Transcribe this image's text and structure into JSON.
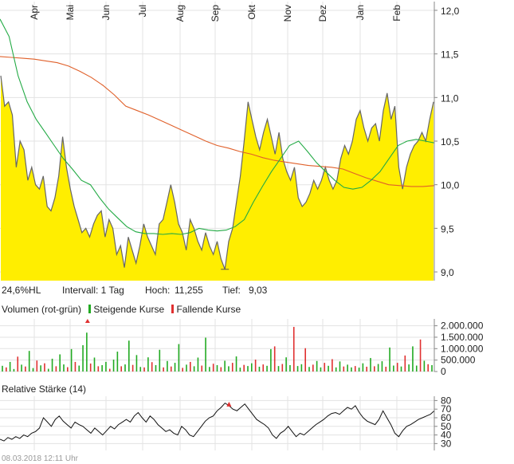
{
  "chart_data": [
    {
      "type": "area",
      "panel": "price",
      "months": [
        "Apr",
        "Mai",
        "Jun",
        "Jul",
        "Aug",
        "Sep",
        "Okt",
        "Nov",
        "Dez",
        "Jan",
        "Feb"
      ],
      "ylim": [
        8.9,
        12.1
      ],
      "y_ticks": [
        "12,0",
        "11,5",
        "11,0",
        "10,5",
        "10,0",
        "9,5",
        "9,0"
      ],
      "y_tick_values": [
        12.0,
        11.5,
        11.0,
        10.5,
        10.0,
        9.5,
        9.0
      ],
      "price_series": [
        11.25,
        10.9,
        10.95,
        10.8,
        10.2,
        10.5,
        10.4,
        10.05,
        10.2,
        10.0,
        9.95,
        10.1,
        9.75,
        9.7,
        9.85,
        10.1,
        10.55,
        10.2,
        9.95,
        9.75,
        9.6,
        9.45,
        9.5,
        9.4,
        9.55,
        9.65,
        9.7,
        9.4,
        9.6,
        9.5,
        9.2,
        9.3,
        9.05,
        9.4,
        9.25,
        9.1,
        9.3,
        9.55,
        9.4,
        9.3,
        9.2,
        9.55,
        9.6,
        9.8,
        10.0,
        9.8,
        9.55,
        9.45,
        9.25,
        9.6,
        9.5,
        9.35,
        9.25,
        9.45,
        9.3,
        9.2,
        9.35,
        9.15,
        9.03,
        9.35,
        9.5,
        9.8,
        10.1,
        10.5,
        10.95,
        10.75,
        10.55,
        10.4,
        10.6,
        10.75,
        10.55,
        10.35,
        10.6,
        10.3,
        10.15,
        10.05,
        10.2,
        9.85,
        9.75,
        9.8,
        9.9,
        10.05,
        9.95,
        10.05,
        10.2,
        10.05,
        9.95,
        10.05,
        10.3,
        10.45,
        10.35,
        10.5,
        10.75,
        10.85,
        10.65,
        10.5,
        10.65,
        10.7,
        10.5,
        10.85,
        11.05,
        10.75,
        10.9,
        10.2,
        9.95,
        10.2,
        10.35,
        10.45,
        10.5,
        10.6,
        10.5,
        10.75,
        10.95
      ],
      "sma200": [
        11.47,
        11.46,
        11.45,
        11.44,
        11.42,
        11.4,
        11.36,
        11.3,
        11.23,
        11.14,
        11.03,
        10.9,
        10.85,
        10.8,
        10.74,
        10.68,
        10.62,
        10.56,
        10.5,
        10.45,
        10.42,
        10.38,
        10.35,
        10.31,
        10.28,
        10.26,
        10.24,
        10.22,
        10.21,
        10.2,
        10.18,
        10.13,
        10.08,
        10.04,
        10.0,
        9.99,
        9.98,
        9.98,
        9.99
      ],
      "sma38": [
        11.9,
        11.7,
        11.25,
        10.95,
        10.75,
        10.6,
        10.45,
        10.3,
        10.18,
        10.05,
        10.0,
        9.85,
        9.72,
        9.62,
        9.52,
        9.46,
        9.44,
        9.44,
        9.43,
        9.44,
        9.43,
        9.45,
        9.5,
        9.48,
        9.47,
        9.48,
        9.52,
        9.6,
        9.8,
        9.98,
        10.15,
        10.3,
        10.45,
        10.5,
        10.38,
        10.25,
        10.15,
        10.05,
        9.97,
        9.95,
        9.97,
        10.05,
        10.15,
        10.3,
        10.45,
        10.5,
        10.52,
        10.5,
        10.48
      ]
    },
    {
      "type": "bar",
      "panel": "volume",
      "title": "Volumen (rot-grün)",
      "ylim": [
        0,
        2300000
      ],
      "y_ticks": [
        "2.000.000",
        "1.500.000",
        "1.000.000",
        "500.000",
        "0"
      ],
      "y_tick_values": [
        2000000,
        1500000,
        1000000,
        500000,
        0
      ],
      "series": [
        {
          "name": "Steigende Kurse",
          "color": "#22aa22"
        },
        {
          "name": "Fallende Kurse",
          "color": "#e03030"
        }
      ],
      "volume_values": [
        250000,
        180000,
        420000,
        110000,
        650000,
        300000,
        220000,
        900000,
        150000,
        480000,
        270000,
        360000,
        120000,
        560000,
        230000,
        750000,
        310000,
        190000,
        980000,
        420000,
        260000,
        1150000,
        1700000,
        350000,
        610000,
        230000,
        280000,
        420000,
        120000,
        520000,
        870000,
        230000,
        310000,
        1350000,
        290000,
        720000,
        200000,
        180000,
        620000,
        410000,
        280000,
        950000,
        180000,
        460000,
        220000,
        380000,
        1200000,
        160000,
        300000,
        420000,
        230000,
        610000,
        260000,
        1480000,
        200000,
        340000,
        280000,
        190000,
        470000,
        230000,
        380000,
        660000,
        170000,
        290000,
        240000,
        360000,
        520000,
        210000,
        310000,
        250000,
        980000,
        1100000,
        240000,
        330000,
        620000,
        280000,
        1950000,
        240000,
        320000,
        1020000,
        200000,
        300000,
        460000,
        180000,
        380000,
        250000,
        540000,
        180000,
        440000,
        220000,
        300000,
        180000,
        240000,
        170000,
        360000,
        210000,
        590000,
        230000,
        330000,
        450000,
        210000,
        1050000,
        260000,
        380000,
        220000,
        700000,
        310000,
        1100000,
        260000,
        1400000,
        470000,
        320000,
        280000
      ],
      "volume_up": [
        true,
        false,
        true,
        true,
        false,
        true,
        false,
        true,
        true,
        false,
        true,
        false,
        true,
        true,
        false,
        true,
        true,
        false,
        true,
        false,
        true,
        true,
        true,
        false,
        true,
        false,
        true,
        true,
        false,
        true,
        true,
        false,
        true,
        true,
        false,
        true,
        true,
        false,
        true,
        false,
        true,
        true,
        false,
        true,
        false,
        true,
        true,
        false,
        true,
        false,
        true,
        true,
        false,
        true,
        true,
        false,
        true,
        false,
        true,
        true,
        false,
        true,
        true,
        false,
        true,
        true,
        false,
        true,
        false,
        true,
        true,
        false,
        true,
        false,
        true,
        true,
        false,
        true,
        true,
        false,
        true,
        false,
        true,
        true,
        false,
        true,
        false,
        true,
        true,
        false,
        true,
        true,
        false,
        true,
        true,
        false,
        true,
        false,
        true,
        true,
        false,
        true,
        true,
        false,
        true,
        false,
        true,
        true,
        true,
        false,
        true,
        false,
        true
      ],
      "volume_clipped": [
        22
      ]
    },
    {
      "type": "line",
      "panel": "rsi",
      "title": "Relative Stärke (14)",
      "ylim": [
        22,
        85
      ],
      "y_ticks": [
        "80",
        "70",
        "60",
        "50",
        "40",
        "30"
      ],
      "y_tick_values": [
        80,
        70,
        60,
        50,
        40,
        30
      ],
      "rsi_values": [
        35,
        33,
        37,
        35,
        38,
        36,
        40,
        38,
        42,
        44,
        48,
        60,
        55,
        50,
        58,
        62,
        56,
        52,
        48,
        55,
        52,
        50,
        46,
        42,
        48,
        44,
        40,
        45,
        50,
        47,
        52,
        55,
        58,
        55,
        62,
        66,
        60,
        55,
        62,
        58,
        52,
        48,
        44,
        46,
        42,
        40,
        50,
        46,
        40,
        38,
        44,
        50,
        56,
        60,
        62,
        68,
        72,
        77,
        74,
        70,
        68,
        72,
        76,
        70,
        64,
        58,
        55,
        52,
        48,
        40,
        36,
        42,
        45,
        50,
        44,
        38,
        42,
        40,
        44,
        48,
        52,
        55,
        58,
        62,
        65,
        66,
        64,
        68,
        72,
        70,
        74,
        66,
        60,
        56,
        54,
        52,
        58,
        68,
        60,
        52,
        42,
        38,
        45,
        50,
        52,
        55,
        58,
        60,
        62,
        64,
        68
      ],
      "rsi_marker_index": 58
    }
  ],
  "info": {
    "hl": "24,6%HL",
    "interval": "Intervall: 1 Tag",
    "high_label": "Hoch:",
    "high_value": "11,255",
    "low_label": "Tief:",
    "low_value": "9,03"
  },
  "timestamp": "08.03.2018 12:11 Uhr",
  "colors": {
    "area_fill": "#ffee00",
    "price_line": "#666666",
    "sma200": "#e0602a",
    "sma38": "#22aa44",
    "up": "#22aa22",
    "down": "#e03030",
    "grid": "#e3e3e3"
  }
}
